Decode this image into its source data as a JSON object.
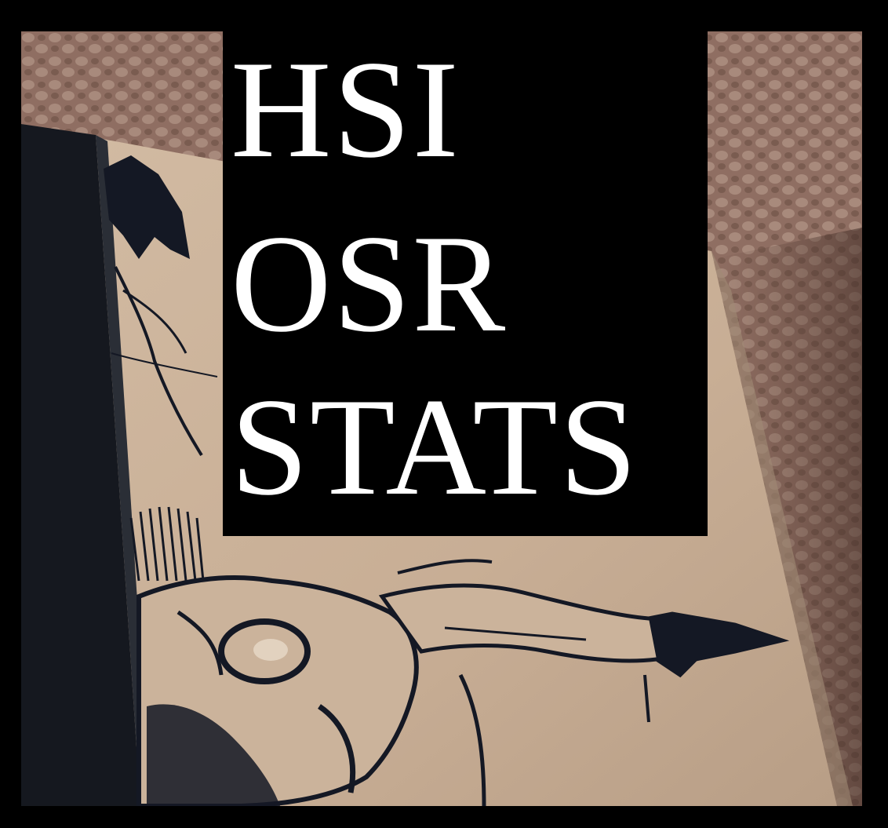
{
  "title_lines": [
    "HSI",
    "OSR",
    "STATS"
  ],
  "colors": {
    "frame": "#000000",
    "panel": "#000000",
    "title_text": "#ffffff",
    "carpet": "#8f6e62",
    "carpet_light": "#a88a7c",
    "carpet_dark": "#6e5247",
    "paper": "#cbb39b",
    "paper_shadow": "#a08a74",
    "binding": "#15181f",
    "ink": "#141824"
  },
  "icons": {
    "background": "skull-illustration-photo"
  }
}
